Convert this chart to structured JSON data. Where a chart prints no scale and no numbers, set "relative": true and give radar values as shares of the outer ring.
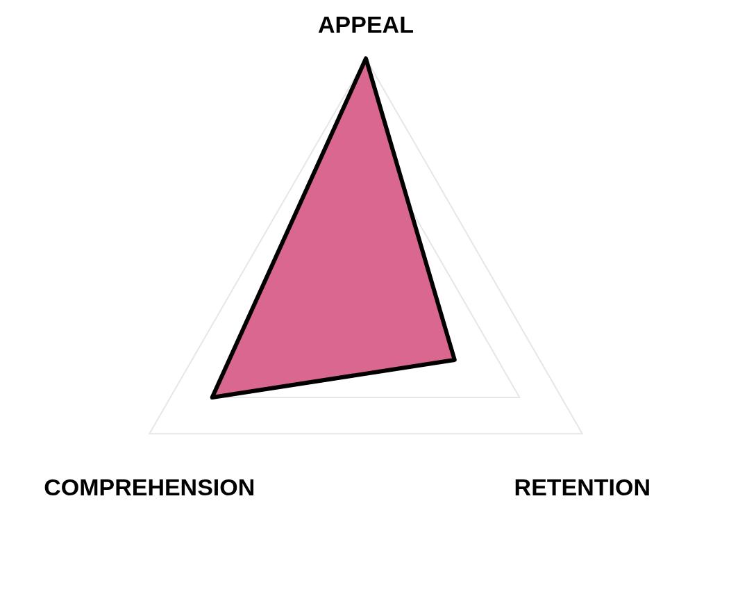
{
  "chart_data": {
    "type": "radar",
    "relative": true,
    "grid": true,
    "categories": [
      "APPEAL",
      "RETENTION",
      "COMPREHENSION"
    ],
    "series": [
      {
        "color": "#d9678f",
        "values": [
          1.0,
          0.41,
          0.71
        ]
      }
    ]
  }
}
